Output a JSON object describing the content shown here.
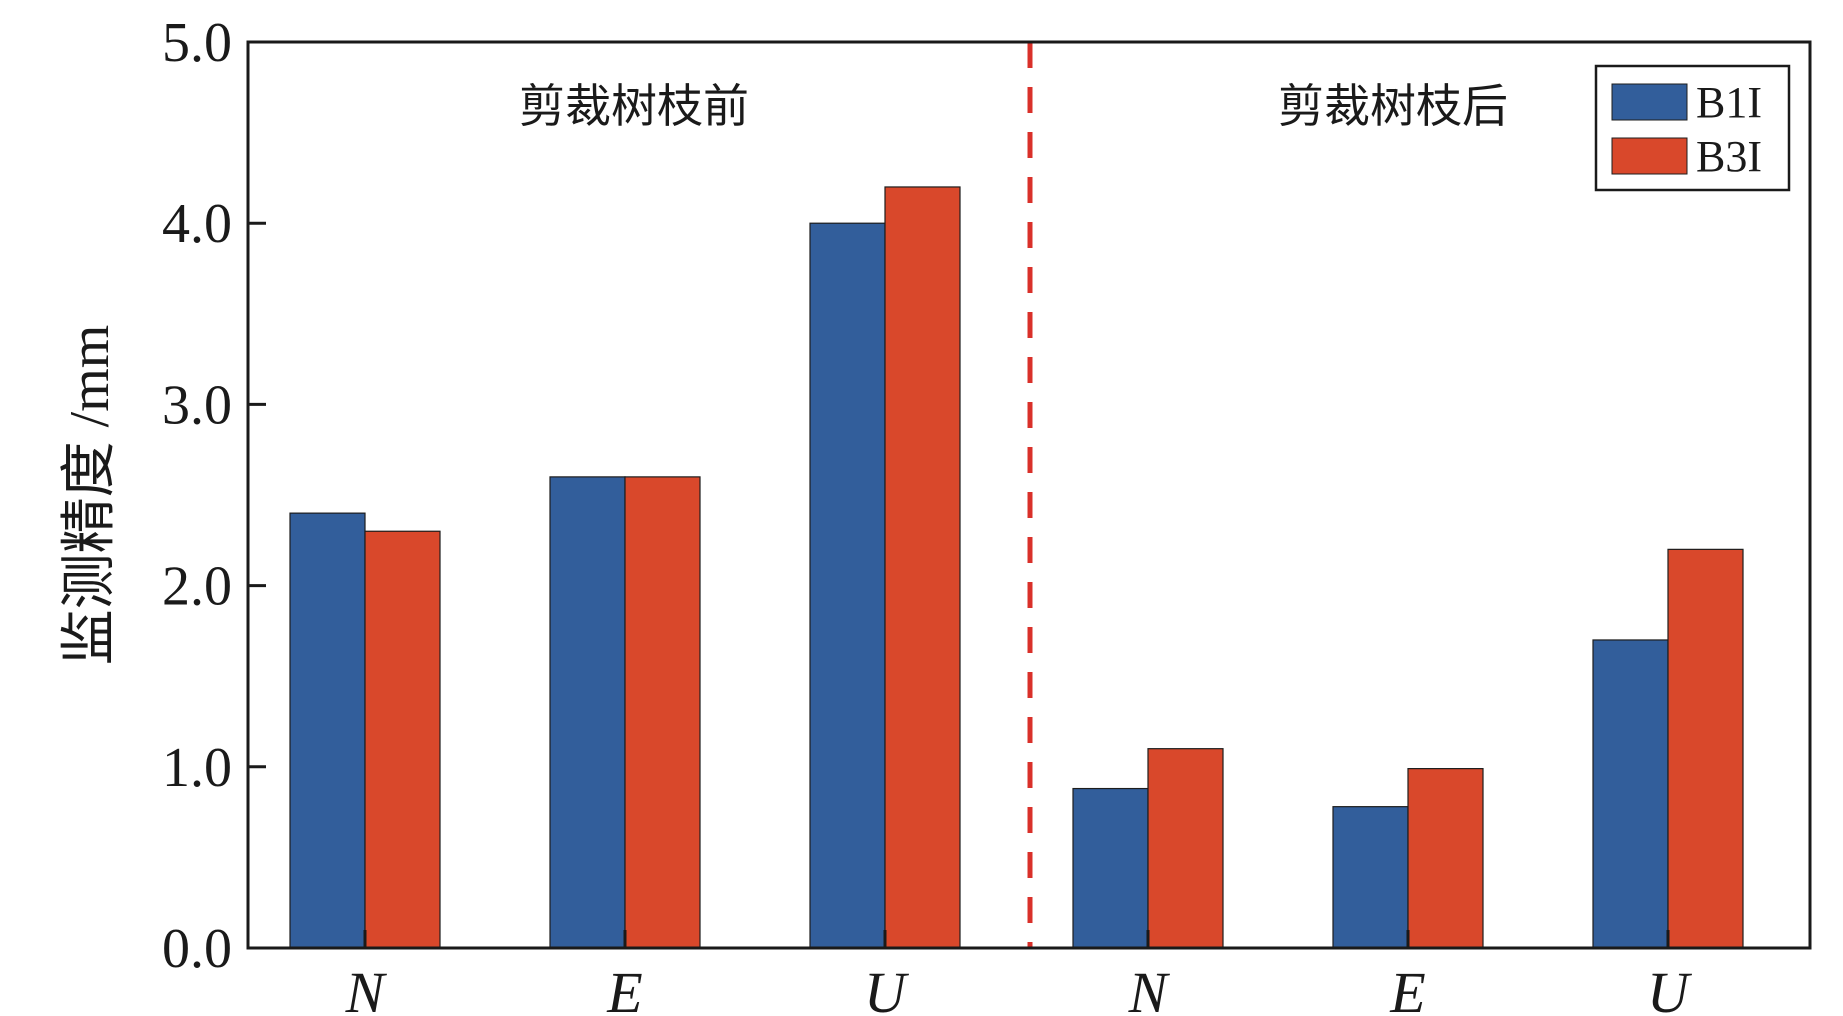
{
  "chart_data": {
    "type": "bar",
    "ylabel": "监测精度 /mm",
    "xlabel": "",
    "ylim": [
      0,
      5.0
    ],
    "yticks": [
      "0.0",
      "1.0",
      "2.0",
      "3.0",
      "4.0",
      "5.0"
    ],
    "categories": [
      "N",
      "E",
      "U",
      "N",
      "E",
      "U"
    ],
    "groups": [
      {
        "label": "剪裁树枝前",
        "categories": [
          "N",
          "E",
          "U"
        ]
      },
      {
        "label": "剪裁树枝后",
        "categories": [
          "N",
          "E",
          "U"
        ]
      }
    ],
    "series": [
      {
        "name": "B1I",
        "color": "#325e9b",
        "values": [
          2.4,
          2.6,
          4.0,
          0.88,
          0.78,
          1.7
        ]
      },
      {
        "name": "B3I",
        "color": "#d9482b",
        "values": [
          2.3,
          2.6,
          4.2,
          1.1,
          0.99,
          2.2
        ]
      }
    ],
    "divider_color": "#d9302a",
    "legend_position": "top-right",
    "grid": false
  }
}
